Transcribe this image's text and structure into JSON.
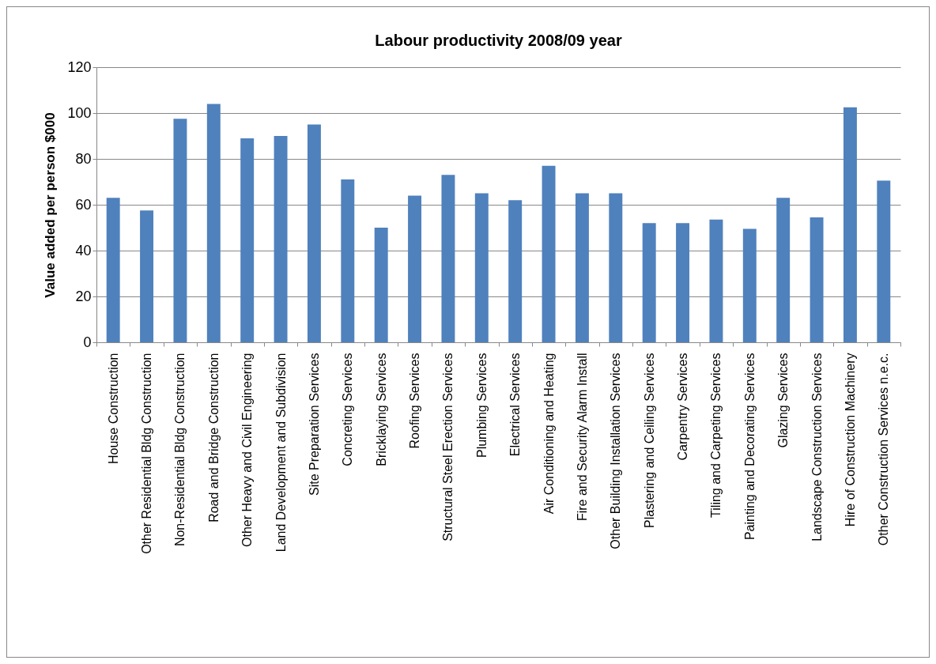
{
  "chart_data": {
    "type": "bar",
    "title": "Labour productivity   2008/09 year",
    "ylabel": "Value added per person $000",
    "categories": [
      "House Construction",
      "Other Residential Bldg Construction",
      "Non-Residential Bldg Construction",
      "Road and Bridge Construction",
      "Other Heavy and Civil Engineering",
      "Land Development and Subdivision",
      "Site Preparation Services",
      "Concreting Services",
      "Bricklaying Services",
      "Roofing Services",
      "Structural Steel Erection Services",
      "Plumbing Services",
      "Electrical Services",
      "Air Conditioning and Heating",
      "Fire and Security Alarm Install",
      "Other Building Installation Services",
      "Plastering and Ceiling Services",
      "Carpentry Services",
      "Tiling and Carpeting Services",
      "Painting and Decorating Services",
      "Glazing Services",
      "Landscape Construction Services",
      "Hire of Construction Machinery",
      "Other Construction Services n.e.c."
    ],
    "values": [
      63,
      57.5,
      97.5,
      104,
      89,
      90,
      95,
      71,
      50,
      64,
      73,
      65,
      62,
      77,
      65,
      65,
      52,
      52,
      53.5,
      49.5,
      63,
      54.5,
      102.5,
      70.5
    ],
    "color": "#4f81bd",
    "ylim": [
      0,
      120
    ],
    "yticks": [
      0,
      20,
      40,
      60,
      80,
      100,
      120
    ],
    "grid": "y"
  }
}
